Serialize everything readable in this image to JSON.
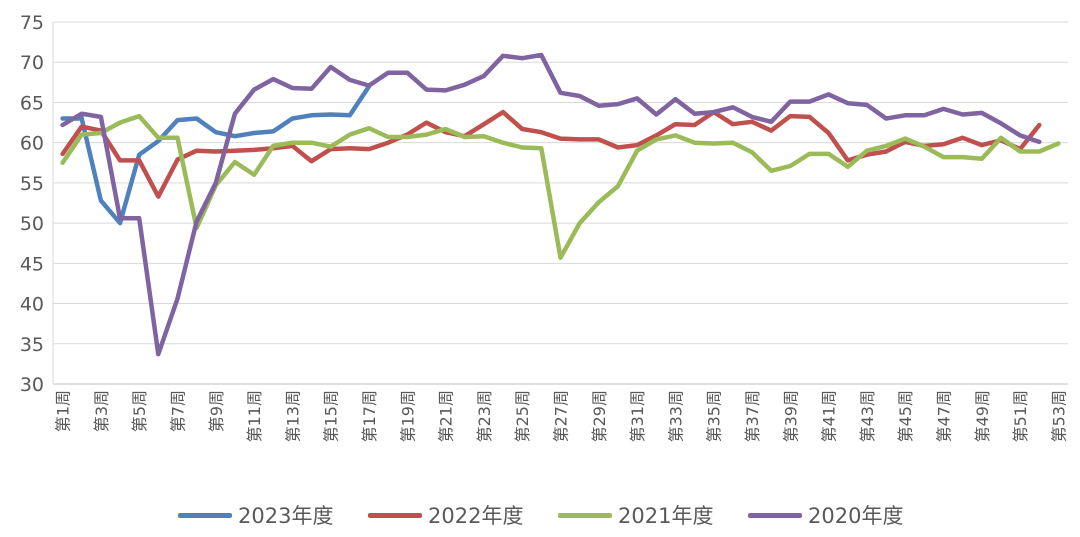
{
  "chart_data": {
    "type": "line",
    "categories": [
      "第1周",
      "第2周",
      "第3周",
      "第4周",
      "第5周",
      "第6周",
      "第7周",
      "第8周",
      "第9周",
      "第10周",
      "第11周",
      "第12周",
      "第13周",
      "第14周",
      "第15周",
      "第16周",
      "第17周",
      "第18周",
      "第19周",
      "第20周",
      "第21周",
      "第22周",
      "第23周",
      "第24周",
      "第25周",
      "第26周",
      "第27周",
      "第28周",
      "第29周",
      "第30周",
      "第31周",
      "第32周",
      "第33周",
      "第34周",
      "第35周",
      "第36周",
      "第37周",
      "第38周",
      "第39周",
      "第40周",
      "第41周",
      "第42周",
      "第43周",
      "第44周",
      "第45周",
      "第46周",
      "第47周",
      "第48周",
      "第49周",
      "第50周",
      "第51周",
      "第52周",
      "第53周"
    ],
    "tick_labels": [
      "第1周",
      "第3周",
      "第5周",
      "第7周",
      "第9周",
      "第11周",
      "第13周",
      "第15周",
      "第17周",
      "第19周",
      "第21周",
      "第23周",
      "第25周",
      "第27周",
      "第29周",
      "第31周",
      "第33周",
      "第35周",
      "第37周",
      "第39周",
      "第41周",
      "第43周",
      "第45周",
      "第47周",
      "第49周",
      "第51周",
      "第53周"
    ],
    "y_ticks": [
      30,
      35,
      40,
      45,
      50,
      55,
      60,
      65,
      70,
      75
    ],
    "ylim": [
      30,
      75
    ],
    "grid": true,
    "legend_position": "bottom",
    "series": [
      {
        "name": "2023年度",
        "color": "#4F81BD",
        "values": [
          63.0,
          63.0,
          52.8,
          50.0,
          58.5,
          60.2,
          62.8,
          63.0,
          61.3,
          60.8,
          61.2,
          61.4,
          63.0,
          63.4,
          63.5,
          63.4,
          67.0,
          null,
          null,
          null,
          null,
          null,
          null,
          null,
          null,
          null,
          null,
          null,
          null,
          null,
          null,
          null,
          null,
          null,
          null,
          null,
          null,
          null,
          null,
          null,
          null,
          null,
          null,
          null,
          null,
          null,
          null,
          null,
          null,
          null,
          null,
          null,
          null
        ]
      },
      {
        "name": "2022年度",
        "color": "#C0504D",
        "values": [
          58.6,
          62.0,
          61.5,
          57.8,
          57.8,
          53.3,
          57.9,
          59.0,
          58.9,
          59.0,
          59.1,
          59.3,
          59.6,
          57.7,
          59.2,
          59.3,
          59.2,
          60.0,
          61.0,
          62.5,
          61.3,
          60.8,
          62.3,
          63.8,
          61.7,
          61.3,
          60.5,
          60.4,
          60.4,
          59.4,
          59.7,
          60.9,
          62.3,
          62.2,
          63.8,
          62.3,
          62.6,
          61.5,
          63.3,
          63.2,
          61.2,
          57.8,
          58.5,
          58.9,
          60.1,
          59.6,
          59.8,
          60.6,
          59.7,
          60.3,
          59.2,
          62.2,
          null
        ]
      },
      {
        "name": "2021年度",
        "color": "#9BBB59",
        "values": [
          57.5,
          61.0,
          61.2,
          62.5,
          63.3,
          60.6,
          60.6,
          49.4,
          54.7,
          57.6,
          56.0,
          59.6,
          60.0,
          60.0,
          59.5,
          61.0,
          61.8,
          60.7,
          60.7,
          61.0,
          61.7,
          60.7,
          60.8,
          60.0,
          59.4,
          59.3,
          45.7,
          50.0,
          52.6,
          54.6,
          59.0,
          60.4,
          60.9,
          60.0,
          59.9,
          60.0,
          58.8,
          56.5,
          57.1,
          58.6,
          58.6,
          57.0,
          59.0,
          59.6,
          60.5,
          59.5,
          58.2,
          58.2,
          58.0,
          60.6,
          58.9,
          58.9,
          59.9
        ]
      },
      {
        "name": "2020年度",
        "color": "#8064A2",
        "values": [
          62.2,
          63.6,
          63.2,
          50.6,
          50.6,
          33.7,
          40.6,
          50.2,
          55.0,
          63.6,
          66.6,
          67.9,
          66.8,
          66.7,
          69.4,
          67.8,
          67.1,
          68.7,
          68.7,
          66.6,
          66.5,
          67.2,
          68.3,
          70.8,
          70.5,
          70.9,
          66.2,
          65.8,
          64.6,
          64.8,
          65.5,
          63.5,
          65.4,
          63.6,
          63.8,
          64.4,
          63.2,
          62.6,
          65.1,
          65.1,
          66.0,
          64.9,
          64.7,
          63.0,
          63.4,
          63.4,
          64.2,
          63.5,
          63.7,
          62.4,
          60.9,
          60.1,
          null
        ]
      }
    ]
  }
}
